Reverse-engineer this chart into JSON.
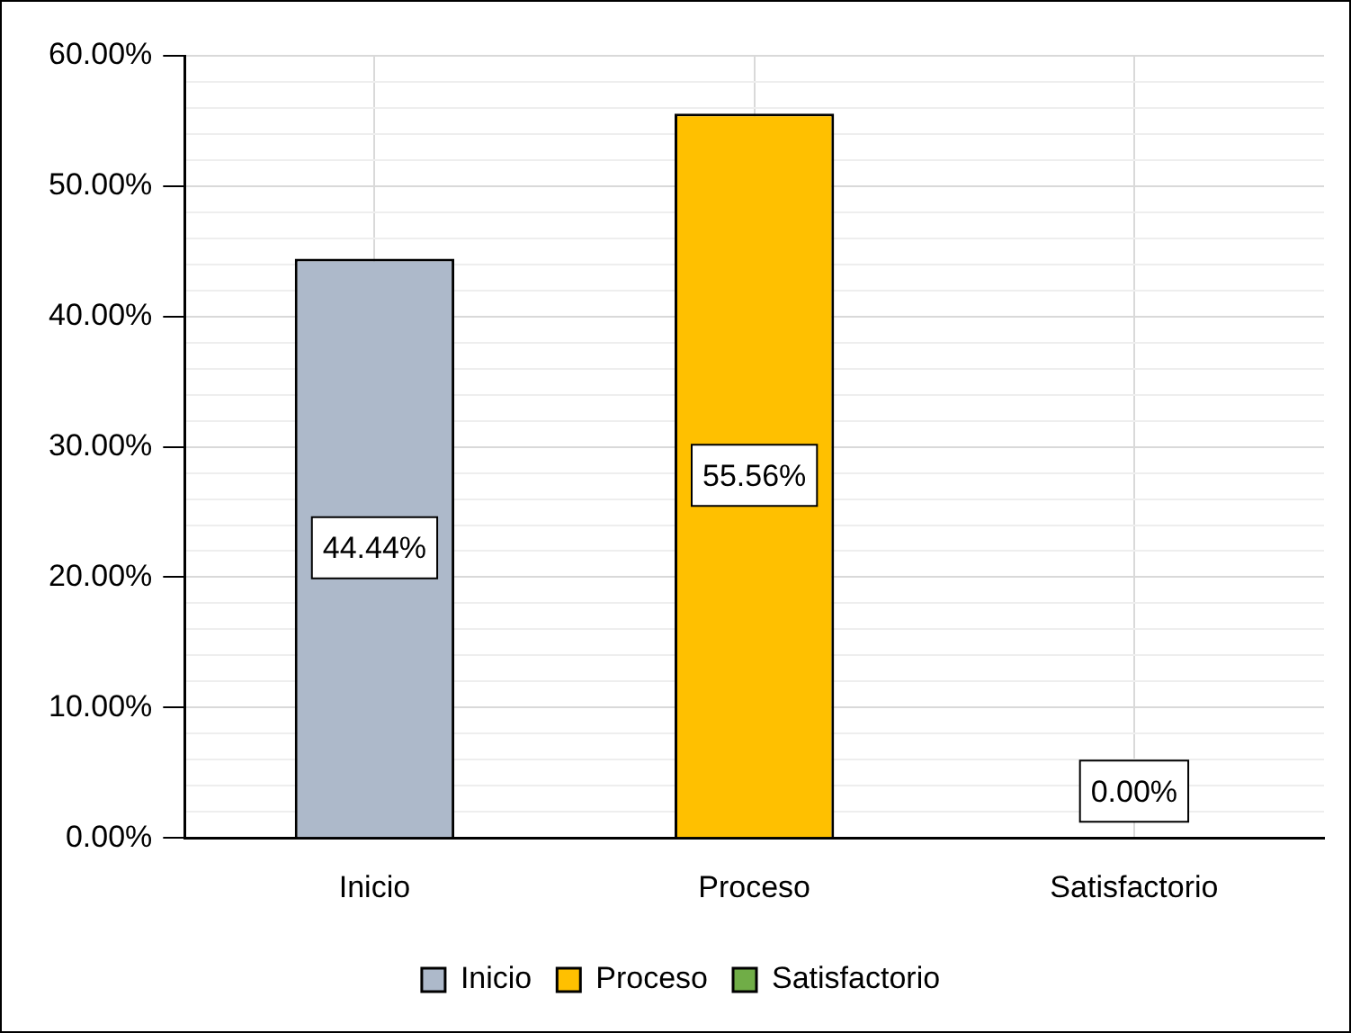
{
  "chart_data": {
    "type": "bar",
    "categories": [
      "Inicio",
      "Proceso",
      "Satisfactorio"
    ],
    "series": [
      {
        "name": "Inicio",
        "color": "#adb9ca",
        "values": [
          44.44,
          null,
          null
        ],
        "value_labels": [
          "44.44%",
          null,
          null
        ]
      },
      {
        "name": "Proceso",
        "color": "#ffc000",
        "values": [
          null,
          55.56,
          null
        ],
        "value_labels": [
          null,
          "55.56%",
          null
        ]
      },
      {
        "name": "Satisfactorio",
        "color": "#70ad47",
        "values": [
          null,
          null,
          0
        ],
        "value_labels": [
          null,
          null,
          "0.00%"
        ]
      }
    ],
    "ylim": [
      0,
      60
    ],
    "yticks": [
      {
        "value": 0,
        "label": "0.00%"
      },
      {
        "value": 2,
        "label": null
      },
      {
        "value": 4,
        "label": null
      },
      {
        "value": 6,
        "label": null
      },
      {
        "value": 8,
        "label": null
      },
      {
        "value": 10,
        "label": "10.00%"
      },
      {
        "value": 12,
        "label": null
      },
      {
        "value": 14,
        "label": null
      },
      {
        "value": 16,
        "label": null
      },
      {
        "value": 18,
        "label": null
      },
      {
        "value": 20,
        "label": "20.00%"
      },
      {
        "value": 22,
        "label": null
      },
      {
        "value": 24,
        "label": null
      },
      {
        "value": 26,
        "label": null
      },
      {
        "value": 28,
        "label": null
      },
      {
        "value": 30,
        "label": "30.00%"
      },
      {
        "value": 32,
        "label": null
      },
      {
        "value": 34,
        "label": null
      },
      {
        "value": 36,
        "label": null
      },
      {
        "value": 38,
        "label": null
      },
      {
        "value": 40,
        "label": "40.00%"
      },
      {
        "value": 42,
        "label": null
      },
      {
        "value": 44,
        "label": null
      },
      {
        "value": 46,
        "label": null
      },
      {
        "value": 48,
        "label": null
      },
      {
        "value": 50,
        "label": "50.00%"
      },
      {
        "value": 52,
        "label": null
      },
      {
        "value": 54,
        "label": null
      },
      {
        "value": 56,
        "label": null
      },
      {
        "value": 58,
        "label": null
      },
      {
        "value": 60,
        "label": "60.00%"
      }
    ],
    "grid": true,
    "legend": "bottom"
  }
}
